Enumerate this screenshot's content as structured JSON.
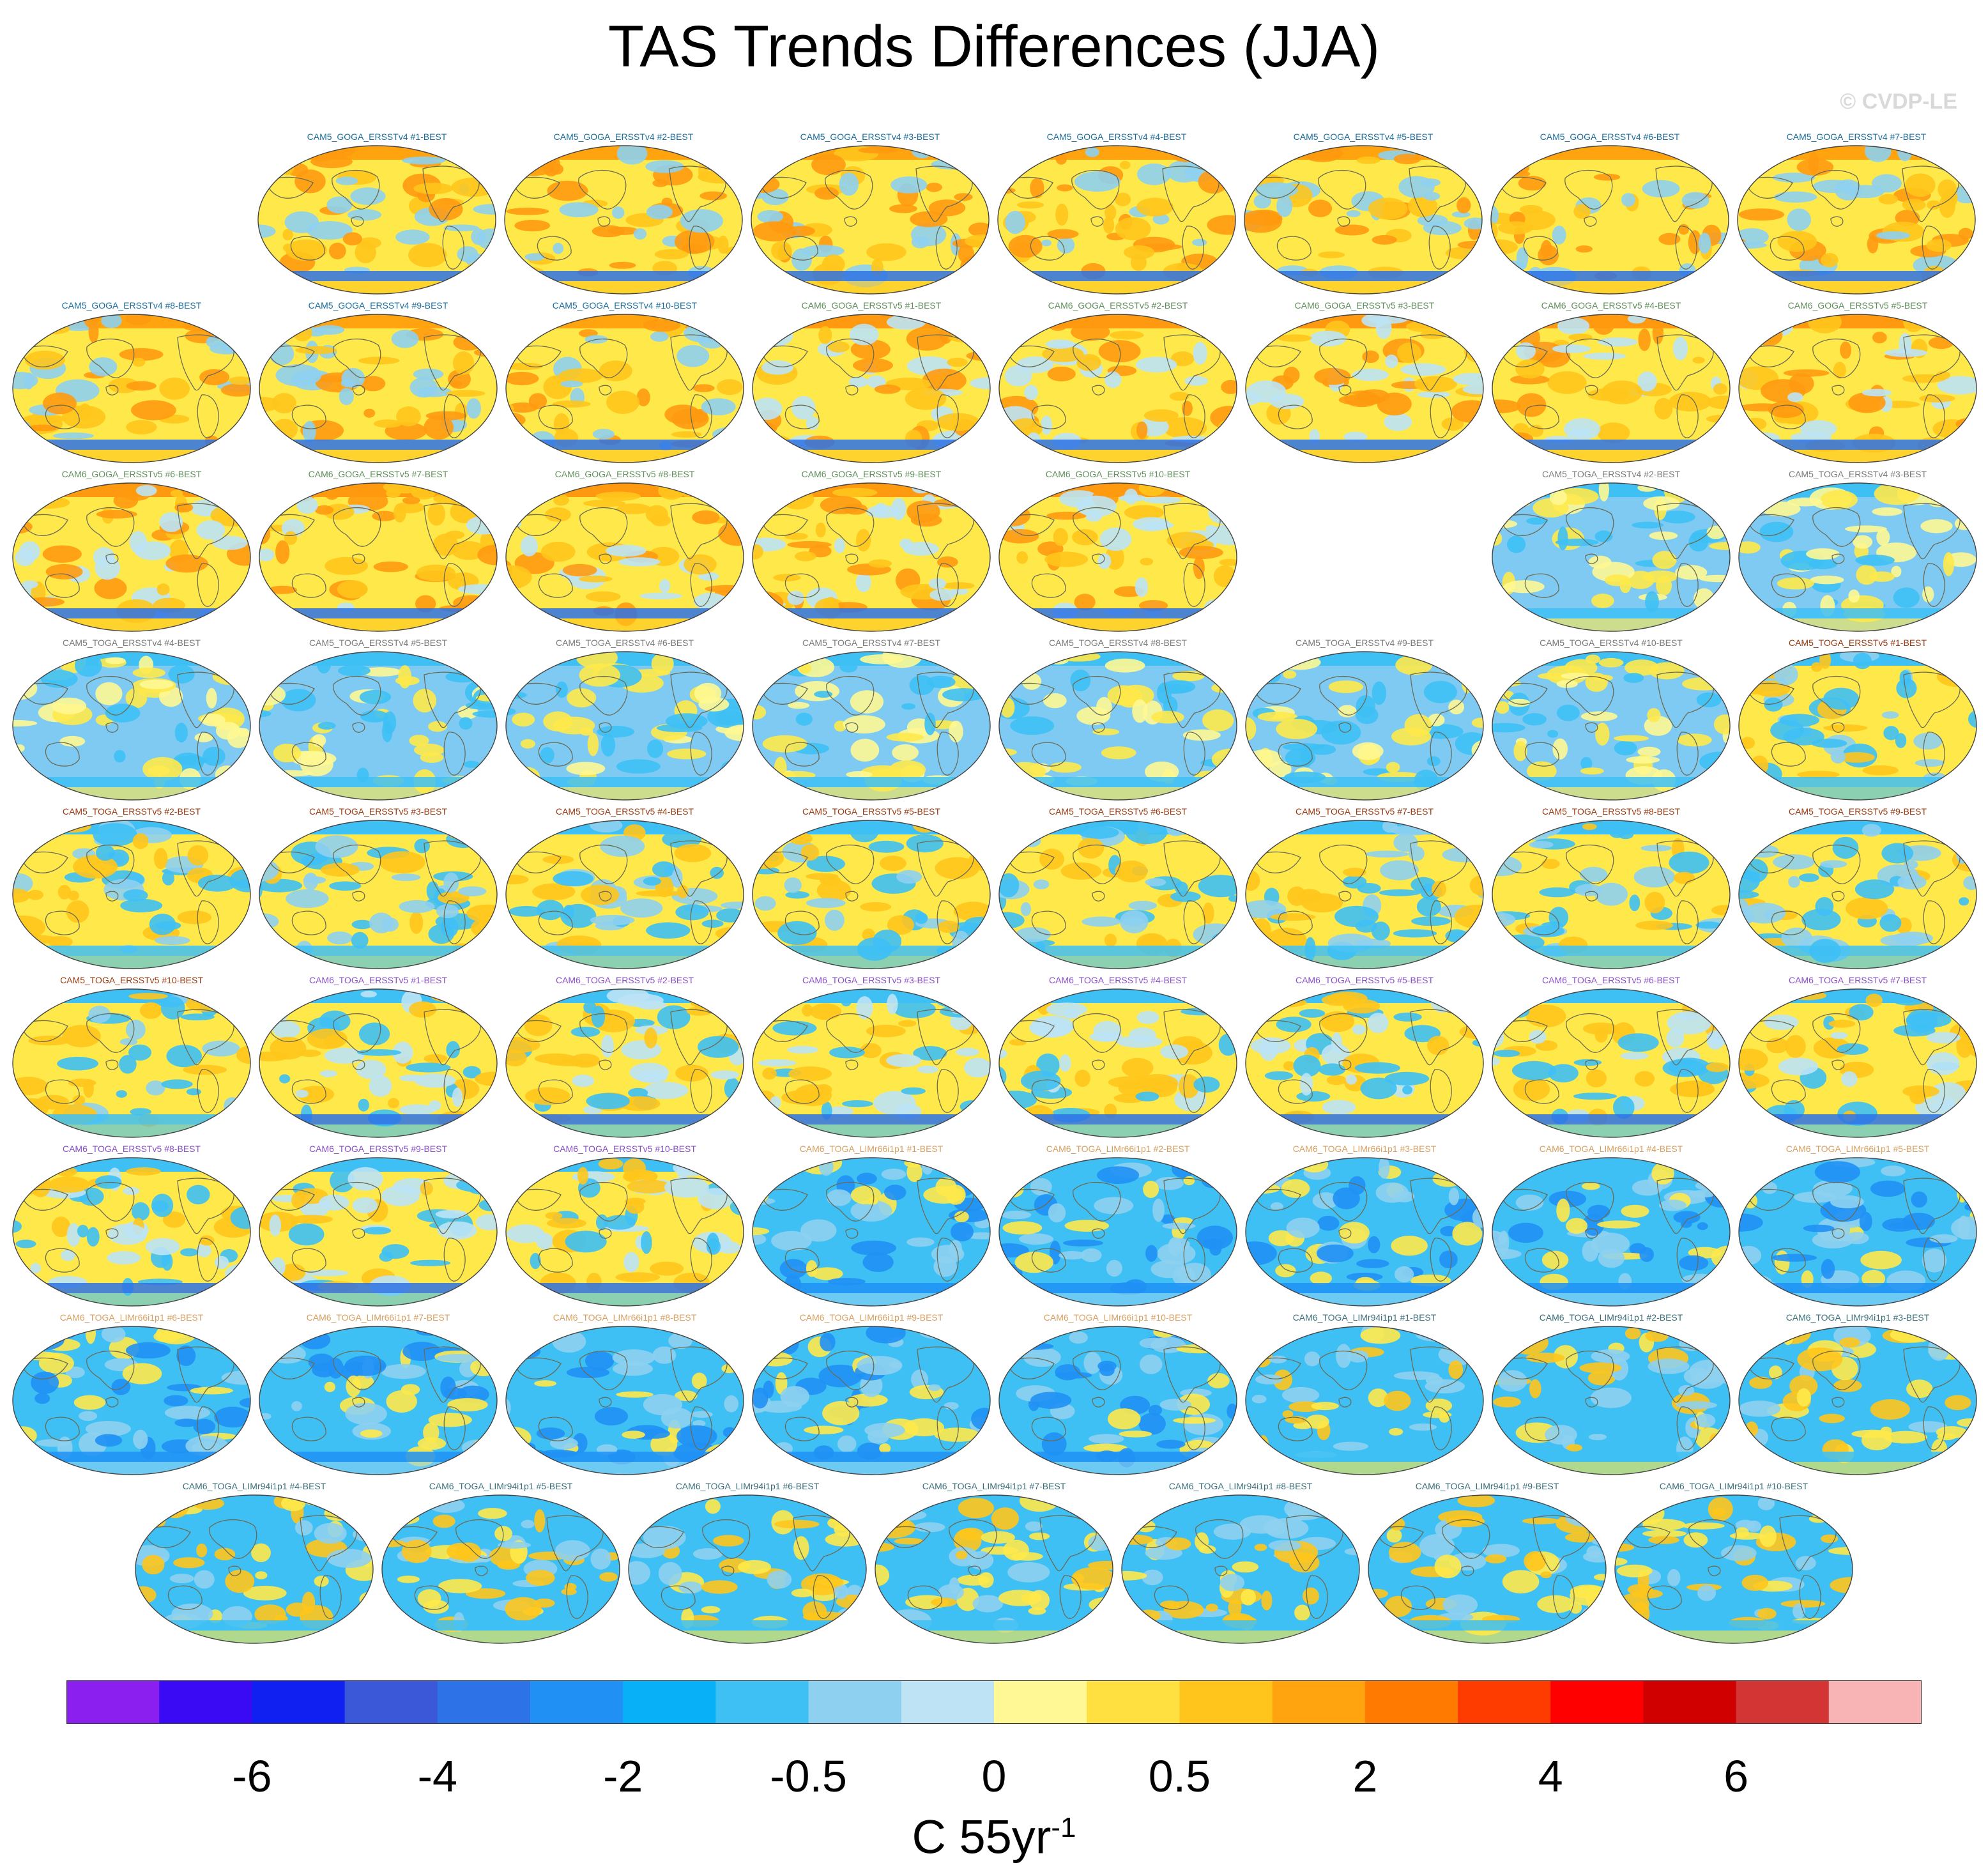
{
  "title": "TAS Trends Differences (JJA)",
  "credit": "© CVDP-LE",
  "panel_rows": [
    [
      "CAM5_GOGA_ERSSTv4 #1-BEST",
      "CAM5_GOGA_ERSSTv4 #2-BEST",
      "CAM5_GOGA_ERSSTv4 #3-BEST",
      "CAM5_GOGA_ERSSTv4 #4-BEST",
      "CAM5_GOGA_ERSSTv4 #5-BEST",
      "CAM5_GOGA_ERSSTv4 #6-BEST",
      "CAM5_GOGA_ERSSTv4 #7-BEST"
    ],
    [
      "CAM5_GOGA_ERSSTv4 #8-BEST",
      "CAM5_GOGA_ERSSTv4 #9-BEST",
      "CAM5_GOGA_ERSSTv4 #10-BEST",
      "CAM6_GOGA_ERSSTv5 #1-BEST",
      "CAM6_GOGA_ERSSTv5 #2-BEST",
      "CAM6_GOGA_ERSSTv5 #3-BEST",
      "CAM6_GOGA_ERSSTv5 #4-BEST",
      "CAM6_GOGA_ERSSTv5 #5-BEST"
    ],
    [
      "CAM6_GOGA_ERSSTv5 #6-BEST",
      "CAM6_GOGA_ERSSTv5 #7-BEST",
      "CAM6_GOGA_ERSSTv5 #8-BEST",
      "CAM6_GOGA_ERSSTv5 #9-BEST",
      "CAM6_GOGA_ERSSTv5 #10-BEST",
      "CAM5_TOGA_ERSSTv4 #2-BEST",
      "CAM5_TOGA_ERSSTv4 #3-BEST"
    ],
    [
      "CAM5_TOGA_ERSSTv4 #4-BEST",
      "CAM5_TOGA_ERSSTv4 #5-BEST",
      "CAM5_TOGA_ERSSTv4 #6-BEST",
      "CAM5_TOGA_ERSSTv4 #7-BEST",
      "CAM5_TOGA_ERSSTv4 #8-BEST",
      "CAM5_TOGA_ERSSTv4 #9-BEST",
      "CAM5_TOGA_ERSSTv4 #10-BEST",
      "CAM5_TOGA_ERSSTv5 #1-BEST"
    ],
    [
      "CAM5_TOGA_ERSSTv5 #2-BEST",
      "CAM5_TOGA_ERSSTv5 #3-BEST",
      "CAM5_TOGA_ERSSTv5 #4-BEST",
      "CAM5_TOGA_ERSSTv5 #5-BEST",
      "CAM5_TOGA_ERSSTv5 #6-BEST",
      "CAM5_TOGA_ERSSTv5 #7-BEST",
      "CAM5_TOGA_ERSSTv5 #8-BEST",
      "CAM5_TOGA_ERSSTv5 #9-BEST"
    ],
    [
      "CAM5_TOGA_ERSSTv5 #10-BEST",
      "CAM6_TOGA_ERSSTv5 #1-BEST",
      "CAM6_TOGA_ERSSTv5 #2-BEST",
      "CAM6_TOGA_ERSSTv5 #3-BEST",
      "CAM6_TOGA_ERSSTv5 #4-BEST",
      "CAM6_TOGA_ERSSTv5 #5-BEST",
      "CAM6_TOGA_ERSSTv5 #6-BEST",
      "CAM6_TOGA_ERSSTv5 #7-BEST"
    ],
    [
      "CAM6_TOGA_ERSSTv5 #8-BEST",
      "CAM6_TOGA_ERSSTv5 #9-BEST",
      "CAM6_TOGA_ERSSTv5 #10-BEST",
      "CAM6_TOGA_LIMr66i1p1 #1-BEST",
      "CAM6_TOGA_LIMr66i1p1 #2-BEST",
      "CAM6_TOGA_LIMr66i1p1 #3-BEST",
      "CAM6_TOGA_LIMr66i1p1 #4-BEST",
      "CAM6_TOGA_LIMr66i1p1 #5-BEST"
    ],
    [
      "CAM6_TOGA_LIMr66i1p1 #6-BEST",
      "CAM6_TOGA_LIMr66i1p1 #7-BEST",
      "CAM6_TOGA_LIMr66i1p1 #8-BEST",
      "CAM6_TOGA_LIMr66i1p1 #9-BEST",
      "CAM6_TOGA_LIMr66i1p1 #10-BEST",
      "CAM6_TOGA_LIMr94i1p1 #1-BEST",
      "CAM6_TOGA_LIMr94i1p1 #2-BEST",
      "CAM6_TOGA_LIMr94i1p1 #3-BEST"
    ],
    [
      "CAM6_TOGA_LIMr94i1p1 #4-BEST",
      "CAM6_TOGA_LIMr94i1p1 #5-BEST",
      "CAM6_TOGA_LIMr94i1p1 #6-BEST",
      "CAM6_TOGA_LIMr94i1p1 #7-BEST",
      "CAM6_TOGA_LIMr94i1p1 #8-BEST",
      "CAM6_TOGA_LIMr94i1p1 #9-BEST",
      "CAM6_TOGA_LIMr94i1p1 #10-BEST"
    ]
  ],
  "group_label_colors": {
    "CAM5_GOGA_ERSSTv4": "#1a6e9e",
    "CAM6_GOGA_ERSSTv5": "#5f8f5a",
    "CAM5_TOGA_ERSSTv4": "#7a7a7a",
    "CAM5_TOGA_ERSSTv5": "#9a3a10",
    "CAM6_TOGA_ERSSTv5": "#8a4fc7",
    "CAM6_TOGA_LIMr66i1p1": "#d8a060",
    "CAM6_TOGA_LIMr94i1p1": "#3a6f7a"
  },
  "chart_data": {
    "type": "map-panel-grid",
    "variable": "TAS",
    "season": "JJA",
    "colorbar": {
      "colors": [
        "#8a1ff0",
        "#3a0af5",
        "#1020f0",
        "#3a58d8",
        "#2d72e6",
        "#2090f5",
        "#08b0f8",
        "#3ec0f5",
        "#8ed0f0",
        "#bde3f5",
        "#fff894",
        "#ffe040",
        "#ffc51c",
        "#ffa30e",
        "#ff7a00",
        "#ff3c00",
        "#ff0000",
        "#d10000",
        "#d33434",
        "#f8b4b4"
      ],
      "tick_labels": [
        "-6",
        "-4",
        "-2",
        "-0.5",
        "0",
        "0.5",
        "2",
        "4",
        "6"
      ],
      "tick_boundary_index": [
        2,
        4,
        6,
        8,
        10,
        12,
        14,
        16,
        18
      ],
      "units": "C 55yr",
      "units_exponent": "-1"
    },
    "panel_styles": {
      "CAM5_GOGA_ERSSTv4": {
        "base": "#ffe94a",
        "patches": [
          "#ffc51c",
          "#8ed0f0",
          "#ff9a10"
        ],
        "arctic": "#ffa30e",
        "southern_ocean": "#2d72e6"
      },
      "CAM6_GOGA_ERSSTv5": {
        "base": "#ffe94a",
        "patches": [
          "#ffc51c",
          "#ff9a10",
          "#bde3f5"
        ],
        "arctic": "#ff9a10",
        "southern_ocean": "#2d72e6"
      },
      "CAM5_TOGA_ERSSTv4": {
        "base": "#7fcaf2",
        "patches": [
          "#ffe94a",
          "#3ec0f5",
          "#fff894"
        ],
        "arctic": "#3ec0f5",
        "southern_ocean": "#3ec0f5"
      },
      "CAM5_TOGA_ERSSTv5": {
        "base": "#ffe94a",
        "patches": [
          "#3ec0f5",
          "#8ed0f0",
          "#ffc51c"
        ],
        "arctic": "#3ec0f5",
        "southern_ocean": "#3ec0f5"
      },
      "CAM6_TOGA_ERSSTv5": {
        "base": "#ffe94a",
        "patches": [
          "#3ec0f5",
          "#ffc51c",
          "#bde3f5"
        ],
        "arctic": "#3ec0f5",
        "southern_ocean": "#2d72e6"
      },
      "CAM6_TOGA_LIMr66i1p1": {
        "base": "#3ec0f5",
        "patches": [
          "#8ed0f0",
          "#ffe94a",
          "#2090f5"
        ],
        "arctic": "#3ec0f5",
        "southern_ocean": "#2090f5"
      },
      "CAM6_TOGA_LIMr94i1p1": {
        "base": "#3ec0f5",
        "patches": [
          "#ffe94a",
          "#ffc51c",
          "#8ed0f0"
        ],
        "arctic": "#3ec0f5",
        "southern_ocean": "#3ec0f5"
      }
    }
  }
}
